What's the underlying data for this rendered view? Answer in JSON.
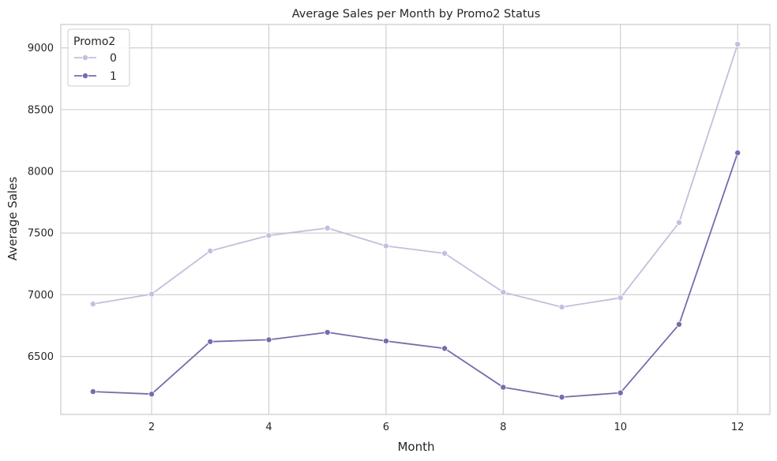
{
  "chart_data": {
    "type": "line",
    "title": "Average Sales per Month by Promo2 Status",
    "xlabel": "Month",
    "ylabel": "Average Sales",
    "x": [
      1,
      2,
      3,
      4,
      5,
      6,
      7,
      8,
      9,
      10,
      11,
      12
    ],
    "xticks": [
      2,
      4,
      6,
      8,
      10,
      12
    ],
    "yticks": [
      6500,
      7000,
      7500,
      8000,
      8500,
      9000
    ],
    "xlim": [
      0.45,
      12.55
    ],
    "ylim": [
      6030,
      9190
    ],
    "grid": true,
    "legend": {
      "title": "Promo2",
      "placement": "top-left"
    },
    "series": [
      {
        "name": "0",
        "color": "#c3bfdc",
        "values": [
          6925,
          7005,
          7355,
          7480,
          7540,
          7395,
          7335,
          7020,
          6900,
          6975,
          7585,
          9030
        ]
      },
      {
        "name": "1",
        "color": "#7a6aab",
        "values": [
          6215,
          6195,
          6620,
          6635,
          6695,
          6625,
          6565,
          6250,
          6170,
          6205,
          6760,
          8150
        ]
      }
    ]
  }
}
